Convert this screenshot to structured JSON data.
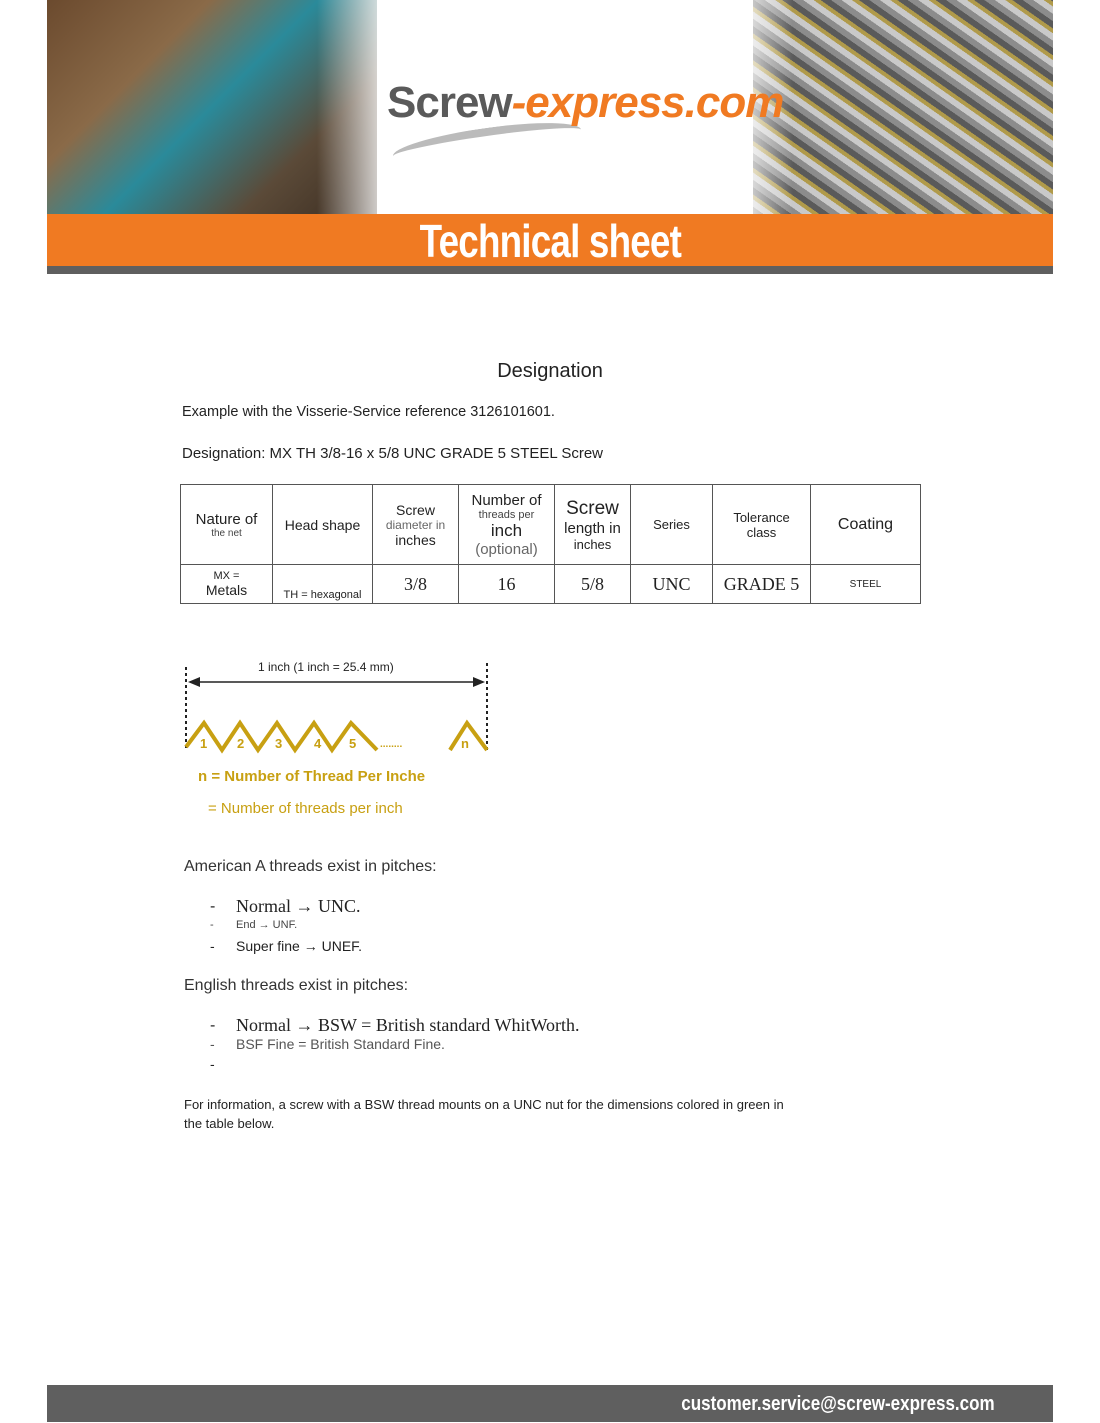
{
  "header": {
    "logo_main": "Screw",
    "logo_accent": "-express.com",
    "banner": "Technical sheet"
  },
  "title": "Designation",
  "intro": "Example with the Visserie-Service reference 3126101601.",
  "designation": "Designation: MX TH 3/8-16 x 5/8 UNC GRADE 5 STEEL Screw",
  "table": {
    "headers": [
      {
        "main": "Nature of",
        "sub": "the net"
      },
      {
        "main": "Head shape"
      },
      {
        "main": "Screw",
        "sub": "diameter in",
        "extra": "inches"
      },
      {
        "main": "Number of",
        "sub": "threads per",
        "extra": "inch",
        "extra2": "(optional)"
      },
      {
        "main": "Screw",
        "sub": "length in",
        "extra": "inches"
      },
      {
        "main": "Series"
      },
      {
        "main": "Tolerance",
        "sub": "class"
      },
      {
        "main": "Coating"
      }
    ],
    "row": [
      {
        "a": "MX =",
        "b": "Metals"
      },
      {
        "a": "TH = hexagonal"
      },
      {
        "a": "3/8"
      },
      {
        "a": "16"
      },
      {
        "a": "5/8"
      },
      {
        "a": "UNC"
      },
      {
        "a": "GRADE 5"
      },
      {
        "a": "STEEL"
      }
    ]
  },
  "diagram": {
    "dimension": "1 inch (1 inch = 25.4 mm)",
    "labels": [
      "1",
      "2",
      "3",
      "4",
      "5",
      "........",
      "n"
    ],
    "caption1": "n = Number of Thread Per Inche",
    "caption2": "= Number of threads per inch",
    "color": "#c8a012"
  },
  "american": {
    "heading": "American A threads exist in pitches:",
    "items": [
      "Normal → UNC.",
      "End → UNF.",
      "Super fine → UNEF."
    ]
  },
  "english": {
    "heading": "English threads exist in pitches:",
    "items": [
      "Normal → BSW = British standard WhitWorth.",
      "BSF Fine = British Standard Fine.",
      ""
    ]
  },
  "note_line1": "For information, a screw with a BSW thread mounts on a UNC nut for the dimensions colored in green in",
  "note_line2": "the table below.",
  "footer": {
    "email": "customer.service@screw-express.com"
  },
  "colors": {
    "accent": "#f07a22",
    "bar": "#5f5f5f",
    "gold": "#c8a012"
  },
  "bullet": "-"
}
